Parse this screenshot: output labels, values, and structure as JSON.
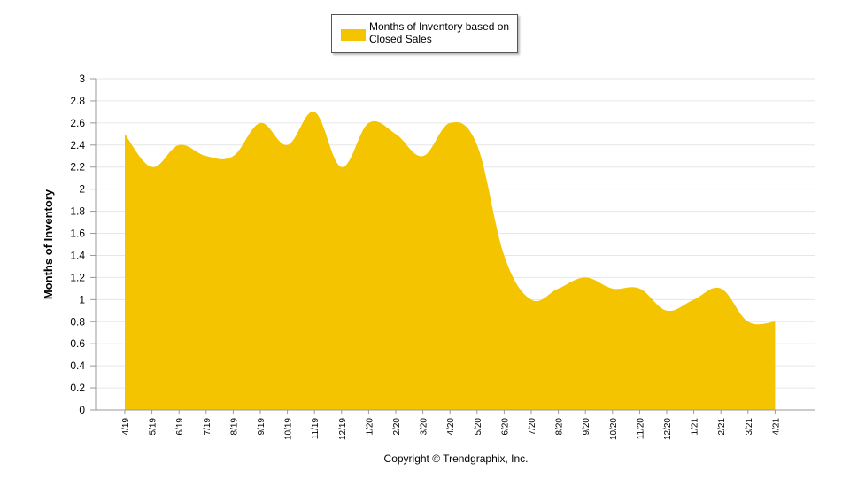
{
  "chart_data": {
    "type": "area",
    "title": "",
    "xlabel": "",
    "ylabel": "Months of Inventory",
    "ylim": [
      0,
      3
    ],
    "ytick_step": 0.2,
    "yticks": [
      "0",
      "0.2",
      "0.4",
      "0.6",
      "0.8",
      "1",
      "1.2",
      "1.4",
      "1.6",
      "1.8",
      "2",
      "2.2",
      "2.4",
      "2.6",
      "2.8",
      "3"
    ],
    "grid": true,
    "legend_position": "top-center",
    "categories": [
      "4/19",
      "5/19",
      "6/19",
      "7/19",
      "8/19",
      "9/19",
      "10/19",
      "11/19",
      "12/19",
      "1/20",
      "2/20",
      "3/20",
      "4/20",
      "5/20",
      "6/20",
      "7/20",
      "8/20",
      "9/20",
      "10/20",
      "11/20",
      "12/20",
      "1/21",
      "2/21",
      "3/21",
      "4/21"
    ],
    "series": [
      {
        "name": "Months of Inventory based on Closed Sales",
        "color": "#f5c400",
        "values": [
          2.5,
          2.2,
          2.4,
          2.3,
          2.3,
          2.6,
          2.4,
          2.7,
          2.2,
          2.6,
          2.5,
          2.3,
          2.6,
          2.4,
          1.4,
          1.0,
          1.1,
          1.2,
          1.1,
          1.1,
          0.9,
          1.0,
          1.1,
          0.8,
          0.8
        ]
      }
    ]
  },
  "legend": {
    "label": "Months of Inventory based on Closed Sales",
    "swatch_color": "#f5c400"
  },
  "footer": {
    "copyright": "Copyright © Trendgraphix, Inc."
  }
}
